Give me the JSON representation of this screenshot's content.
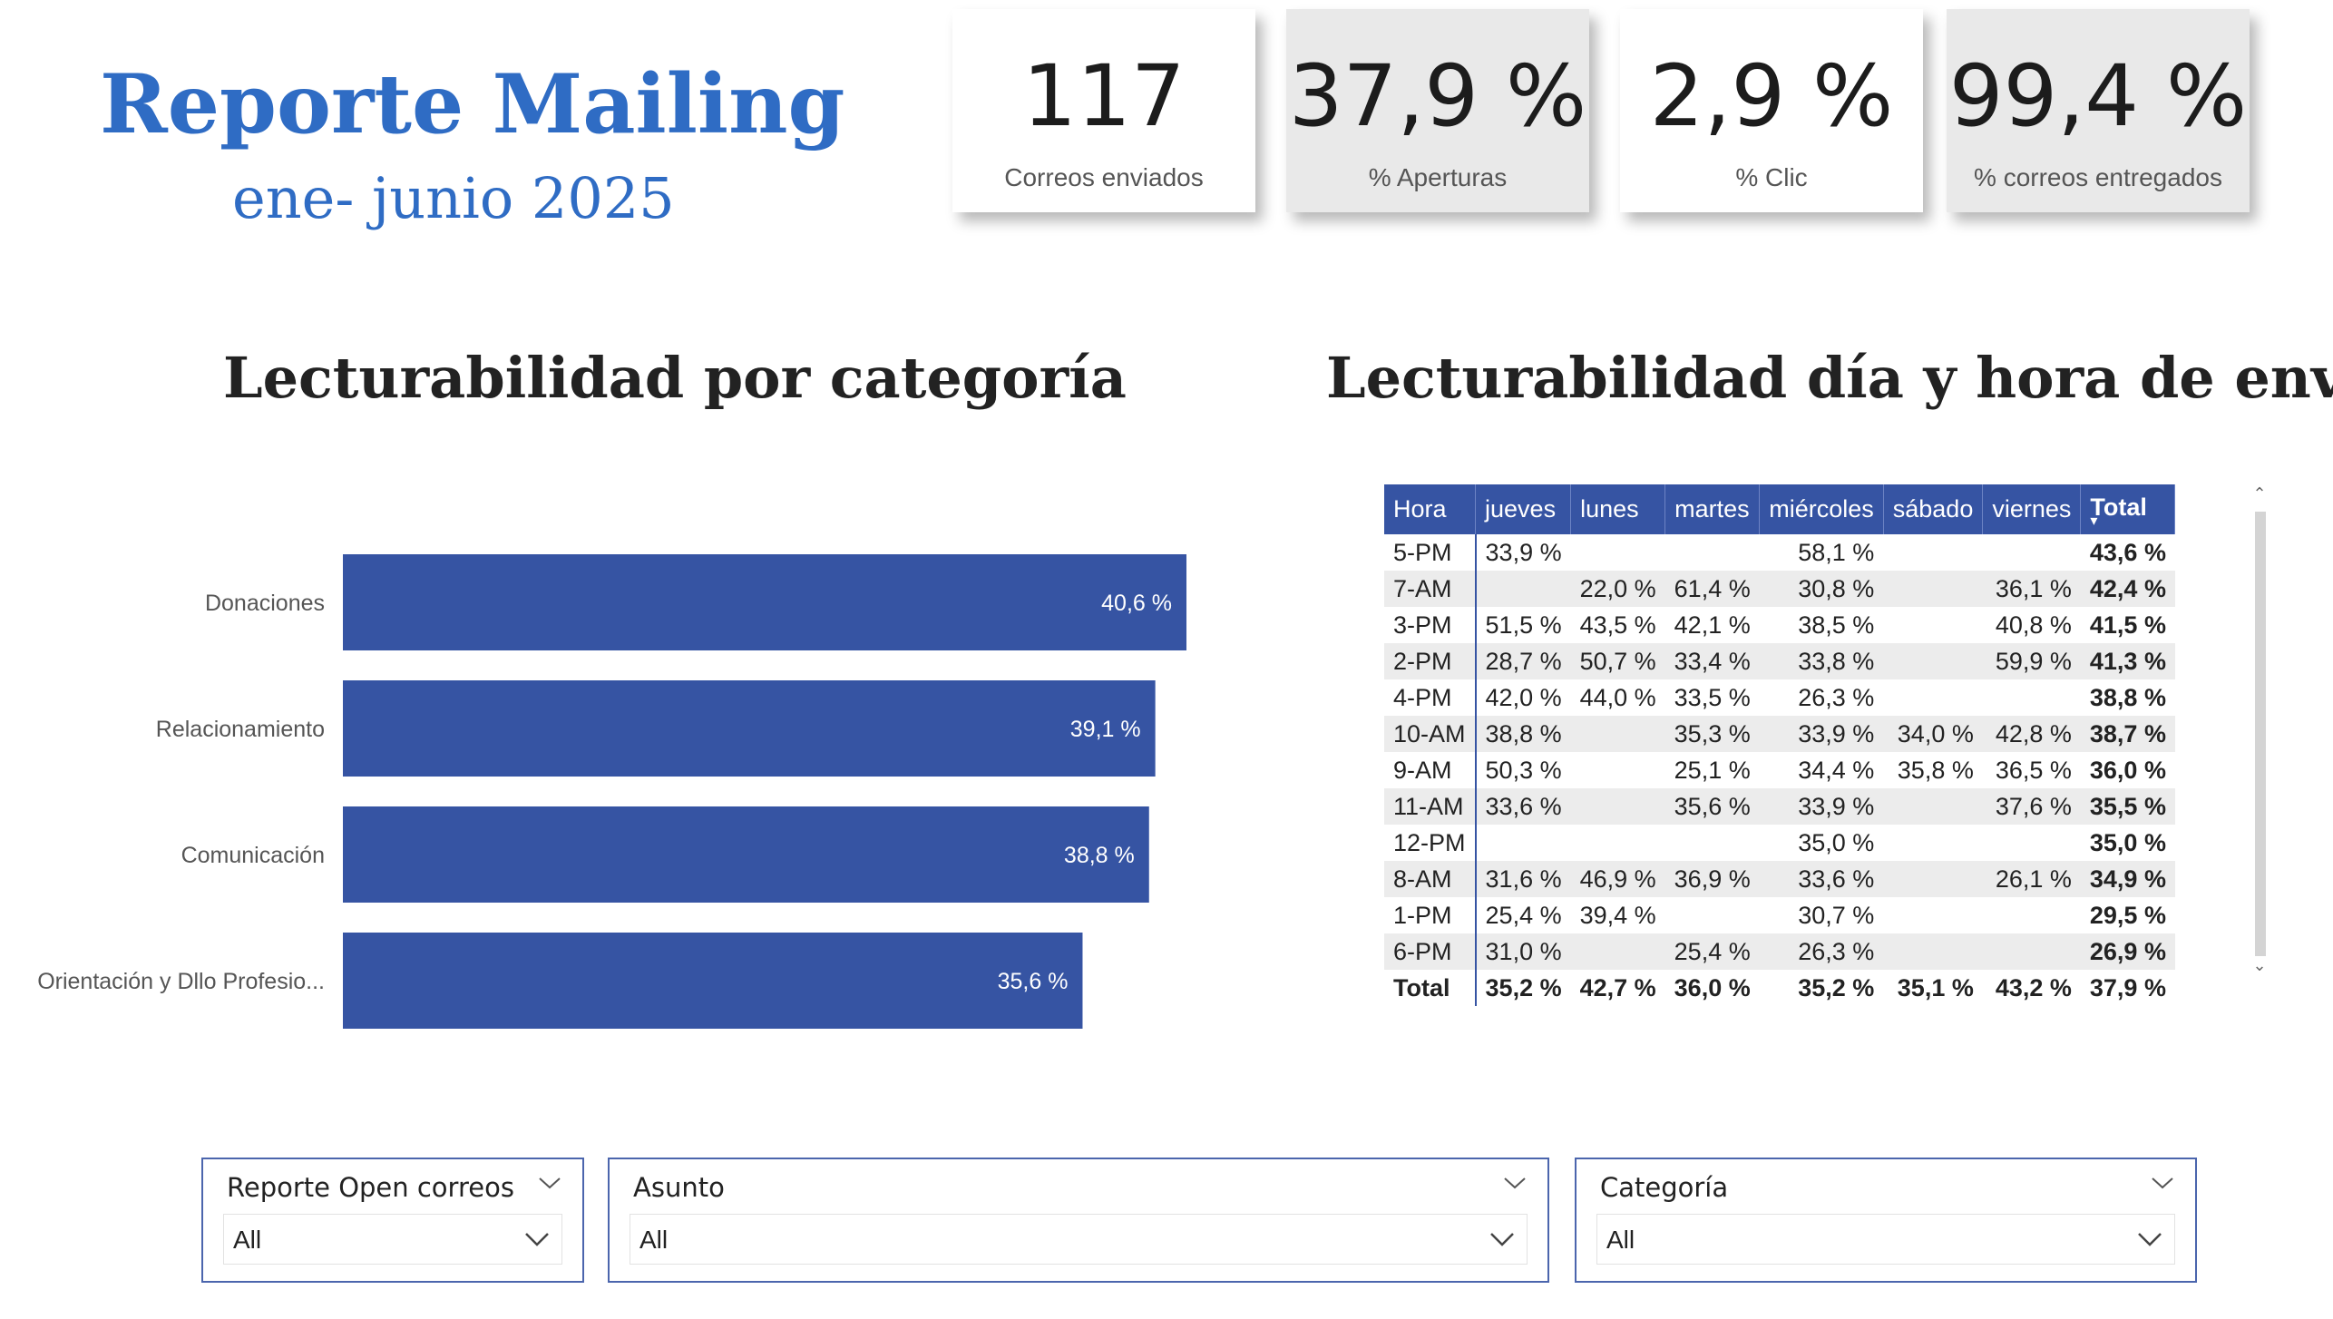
{
  "header": {
    "title": "Reporte Mailing",
    "subtitle": "ene- junio 2025"
  },
  "kpis": [
    {
      "value": "117",
      "label": "Correos enviados",
      "bg": "#ffffff"
    },
    {
      "value": "37,9 %",
      "label": "% Aperturas",
      "bg": "#e9e9e9"
    },
    {
      "value": "2,9 %",
      "label": "% Clic",
      "bg": "#ffffff"
    },
    {
      "value": "99,4 %",
      "label": "% correos entregados",
      "bg": "#e9e9e9"
    }
  ],
  "sections": {
    "category_title": "Lecturabilidad por categoría",
    "matrix_title": "Lecturabilidad día y hora de envío"
  },
  "chart_data": [
    {
      "type": "bar",
      "orientation": "horizontal",
      "title": "Lecturabilidad por categoría",
      "categories": [
        "Donaciones",
        "Relacionamiento",
        "Comunicación",
        "Orientación y Dllo Profesio..."
      ],
      "values": [
        40.6,
        39.1,
        38.8,
        35.6
      ],
      "value_labels": [
        "40,6 %",
        "39,1 %",
        "38,8 %",
        "35,6 %"
      ],
      "xlim": [
        0,
        40.6
      ],
      "color": "#3654a3",
      "grid": false
    },
    {
      "type": "table",
      "title": "Lecturabilidad día y hora de envío",
      "columns": [
        "Hora",
        "jueves",
        "lunes",
        "martes",
        "miércoles",
        "sábado",
        "viernes",
        "Total"
      ],
      "rows": [
        [
          "5-PM",
          "33,9 %",
          "",
          "",
          "58,1 %",
          "",
          "",
          "43,6 %"
        ],
        [
          "7-AM",
          "",
          "22,0 %",
          "61,4 %",
          "30,8 %",
          "",
          "36,1 %",
          "42,4 %"
        ],
        [
          "3-PM",
          "51,5 %",
          "43,5 %",
          "42,1 %",
          "38,5 %",
          "",
          "40,8 %",
          "41,5 %"
        ],
        [
          "2-PM",
          "28,7 %",
          "50,7 %",
          "33,4 %",
          "33,8 %",
          "",
          "59,9 %",
          "41,3 %"
        ],
        [
          "4-PM",
          "42,0 %",
          "44,0 %",
          "33,5 %",
          "26,3 %",
          "",
          "",
          "38,8 %"
        ],
        [
          "10-AM",
          "38,8 %",
          "",
          "35,3 %",
          "33,9 %",
          "34,0 %",
          "42,8 %",
          "38,7 %"
        ],
        [
          "9-AM",
          "50,3 %",
          "",
          "25,1 %",
          "34,4 %",
          "35,8 %",
          "36,5 %",
          "36,0 %"
        ],
        [
          "11-AM",
          "33,6 %",
          "",
          "35,6 %",
          "33,9 %",
          "",
          "37,6 %",
          "35,5 %"
        ],
        [
          "12-PM",
          "",
          "",
          "",
          "35,0 %",
          "",
          "",
          "35,0 %"
        ],
        [
          "8-AM",
          "31,6 %",
          "46,9 %",
          "36,9 %",
          "33,6 %",
          "",
          "26,1 %",
          "34,9 %"
        ],
        [
          "1-PM",
          "25,4 %",
          "39,4 %",
          "",
          "30,7 %",
          "",
          "",
          "29,5 %"
        ],
        [
          "6-PM",
          "31,0 %",
          "",
          "25,4 %",
          "26,3 %",
          "",
          "",
          "26,9 %"
        ]
      ],
      "total_row": [
        "Total",
        "35,2 %",
        "42,7 %",
        "36,0 %",
        "35,2 %",
        "35,1 %",
        "43,2 %",
        "37,9 %"
      ],
      "sorted_by": "Total"
    }
  ],
  "slicers": [
    {
      "title": "Reporte Open correos",
      "value": "All"
    },
    {
      "title": "Asunto",
      "value": "All"
    },
    {
      "title": "Categoría",
      "value": "All"
    }
  ],
  "colors": {
    "accent": "#2f6cc4",
    "bar": "#3654a3",
    "header_bg": "#3654a3",
    "alt_row": "#ececec"
  }
}
